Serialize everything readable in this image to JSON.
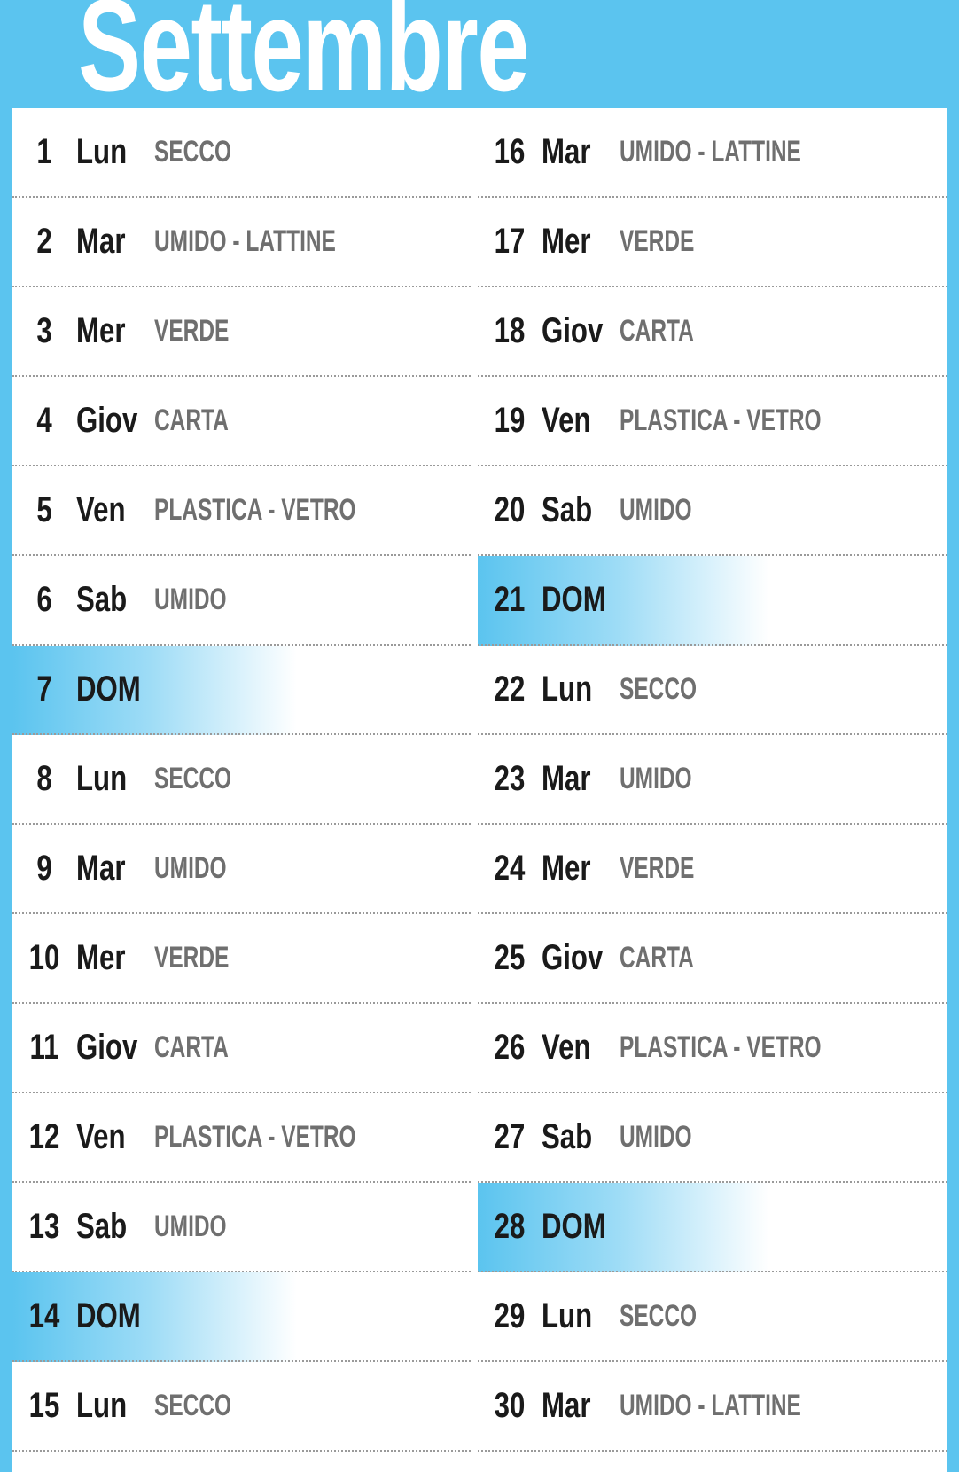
{
  "calendar": {
    "month": "Settembre",
    "colors": {
      "accent": "#5bc4ef",
      "day_text": "#1a1a1a",
      "waste_text": "#6f6f6f",
      "divider": "#9a9a9a"
    },
    "left_column": [
      {
        "day": "1",
        "weekday": "Lun",
        "waste": "SECCO",
        "sunday": false
      },
      {
        "day": "2",
        "weekday": "Mar",
        "waste": "UMIDO - LATTINE",
        "sunday": false
      },
      {
        "day": "3",
        "weekday": "Mer",
        "waste": "VERDE",
        "sunday": false
      },
      {
        "day": "4",
        "weekday": "Giov",
        "waste": "CARTA",
        "sunday": false
      },
      {
        "day": "5",
        "weekday": "Ven",
        "waste": "PLASTICA - VETRO",
        "sunday": false
      },
      {
        "day": "6",
        "weekday": "Sab",
        "waste": "UMIDO",
        "sunday": false
      },
      {
        "day": "7",
        "weekday": "DOM",
        "waste": "",
        "sunday": true
      },
      {
        "day": "8",
        "weekday": "Lun",
        "waste": "SECCO",
        "sunday": false
      },
      {
        "day": "9",
        "weekday": "Mar",
        "waste": "UMIDO",
        "sunday": false
      },
      {
        "day": "10",
        "weekday": "Mer",
        "waste": "VERDE",
        "sunday": false
      },
      {
        "day": "11",
        "weekday": "Giov",
        "waste": "CARTA",
        "sunday": false
      },
      {
        "day": "12",
        "weekday": "Ven",
        "waste": "PLASTICA - VETRO",
        "sunday": false
      },
      {
        "day": "13",
        "weekday": "Sab",
        "waste": "UMIDO",
        "sunday": false
      },
      {
        "day": "14",
        "weekday": "DOM",
        "waste": "",
        "sunday": true
      },
      {
        "day": "15",
        "weekday": "Lun",
        "waste": "SECCO",
        "sunday": false
      }
    ],
    "right_column": [
      {
        "day": "16",
        "weekday": "Mar",
        "waste": "UMIDO - LATTINE",
        "sunday": false
      },
      {
        "day": "17",
        "weekday": "Mer",
        "waste": "VERDE",
        "sunday": false
      },
      {
        "day": "18",
        "weekday": "Giov",
        "waste": "CARTA",
        "sunday": false
      },
      {
        "day": "19",
        "weekday": "Ven",
        "waste": "PLASTICA - VETRO",
        "sunday": false
      },
      {
        "day": "20",
        "weekday": "Sab",
        "waste": "UMIDO",
        "sunday": false
      },
      {
        "day": "21",
        "weekday": "DOM",
        "waste": "",
        "sunday": true
      },
      {
        "day": "22",
        "weekday": "Lun",
        "waste": "SECCO",
        "sunday": false
      },
      {
        "day": "23",
        "weekday": "Mar",
        "waste": "UMIDO",
        "sunday": false
      },
      {
        "day": "24",
        "weekday": "Mer",
        "waste": "VERDE",
        "sunday": false
      },
      {
        "day": "25",
        "weekday": "Giov",
        "waste": "CARTA",
        "sunday": false
      },
      {
        "day": "26",
        "weekday": "Ven",
        "waste": "PLASTICA - VETRO",
        "sunday": false
      },
      {
        "day": "27",
        "weekday": "Sab",
        "waste": "UMIDO",
        "sunday": false
      },
      {
        "day": "28",
        "weekday": "DOM",
        "waste": "",
        "sunday": true
      },
      {
        "day": "29",
        "weekday": "Lun",
        "waste": "SECCO",
        "sunday": false
      },
      {
        "day": "30",
        "weekday": "Mar",
        "waste": "UMIDO - LATTINE",
        "sunday": false
      }
    ]
  }
}
